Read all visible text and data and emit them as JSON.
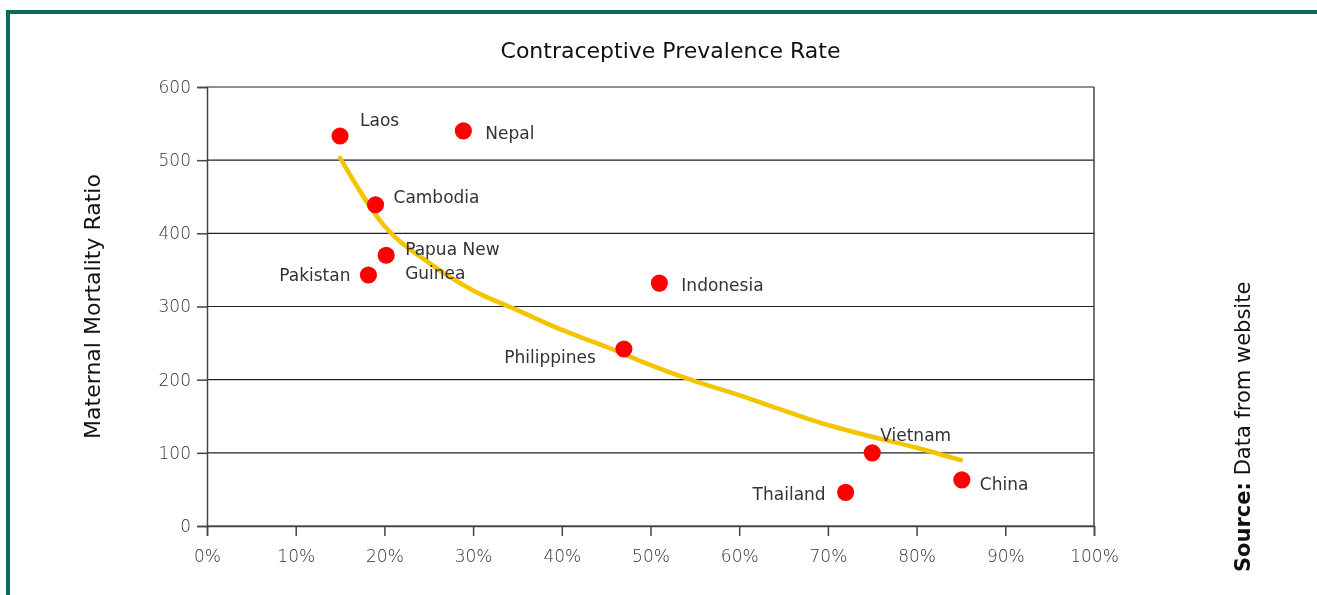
{
  "chart_data": {
    "type": "scatter",
    "title": "Contraceptive Prevalence Rate",
    "ylabel": "Maternal Mortality Ratio",
    "xlim": [
      0,
      100
    ],
    "ylim": [
      0,
      600
    ],
    "xticks": [
      {
        "value": 0,
        "label": "0%"
      },
      {
        "value": 10,
        "label": "10%"
      },
      {
        "value": 20,
        "label": "20%"
      },
      {
        "value": 30,
        "label": "30%"
      },
      {
        "value": 40,
        "label": "40%"
      },
      {
        "value": 50,
        "label": "50%"
      },
      {
        "value": 60,
        "label": "60%"
      },
      {
        "value": 70,
        "label": "70%"
      },
      {
        "value": 80,
        "label": "80%"
      },
      {
        "value": 90,
        "label": "90%"
      },
      {
        "value": 100,
        "label": "100%"
      }
    ],
    "yticks": [
      0,
      100,
      200,
      300,
      400,
      500,
      600
    ],
    "grid": "y",
    "marker": "circle",
    "series": [
      {
        "color": "#ff0000",
        "x": [
          15,
          28.9,
          19,
          20.2,
          18.2,
          51,
          47,
          75,
          72,
          85.1
        ],
        "values": [
          533,
          540,
          439,
          370,
          343,
          332,
          242,
          100,
          46,
          63
        ]
      },
      {
        "type": "line",
        "color": "#f5c400",
        "line_style": "solid",
        "marker": "none",
        "x": [
          15,
          20,
          25,
          30,
          35,
          40,
          45,
          50,
          55,
          60,
          65,
          70,
          75,
          80,
          85
        ],
        "values": [
          503,
          410,
          360,
          322,
          295,
          268,
          245,
          220,
          198,
          179,
          158,
          138,
          122,
          107,
          90
        ]
      }
    ],
    "annotations": [
      {
        "text": "Laos",
        "x": 15,
        "y": 533
      },
      {
        "text": "Nepal",
        "x": 28.9,
        "y": 540
      },
      {
        "text": "Cambodia",
        "x": 19,
        "y": 439
      },
      {
        "text": "Papua New Guinea",
        "x": 20.2,
        "y": 370
      },
      {
        "text": "Pakistan",
        "x": 18.2,
        "y": 343
      },
      {
        "text": "Indonesia",
        "x": 51,
        "y": 332
      },
      {
        "text": "Philippines",
        "x": 47,
        "y": 242
      },
      {
        "text": "Vietnam",
        "x": 75,
        "y": 100
      },
      {
        "text": "Thailand",
        "x": 72,
        "y": 46
      },
      {
        "text": "China",
        "x": 85.1,
        "y": 63
      },
      "Source: Data from website"
    ]
  }
}
